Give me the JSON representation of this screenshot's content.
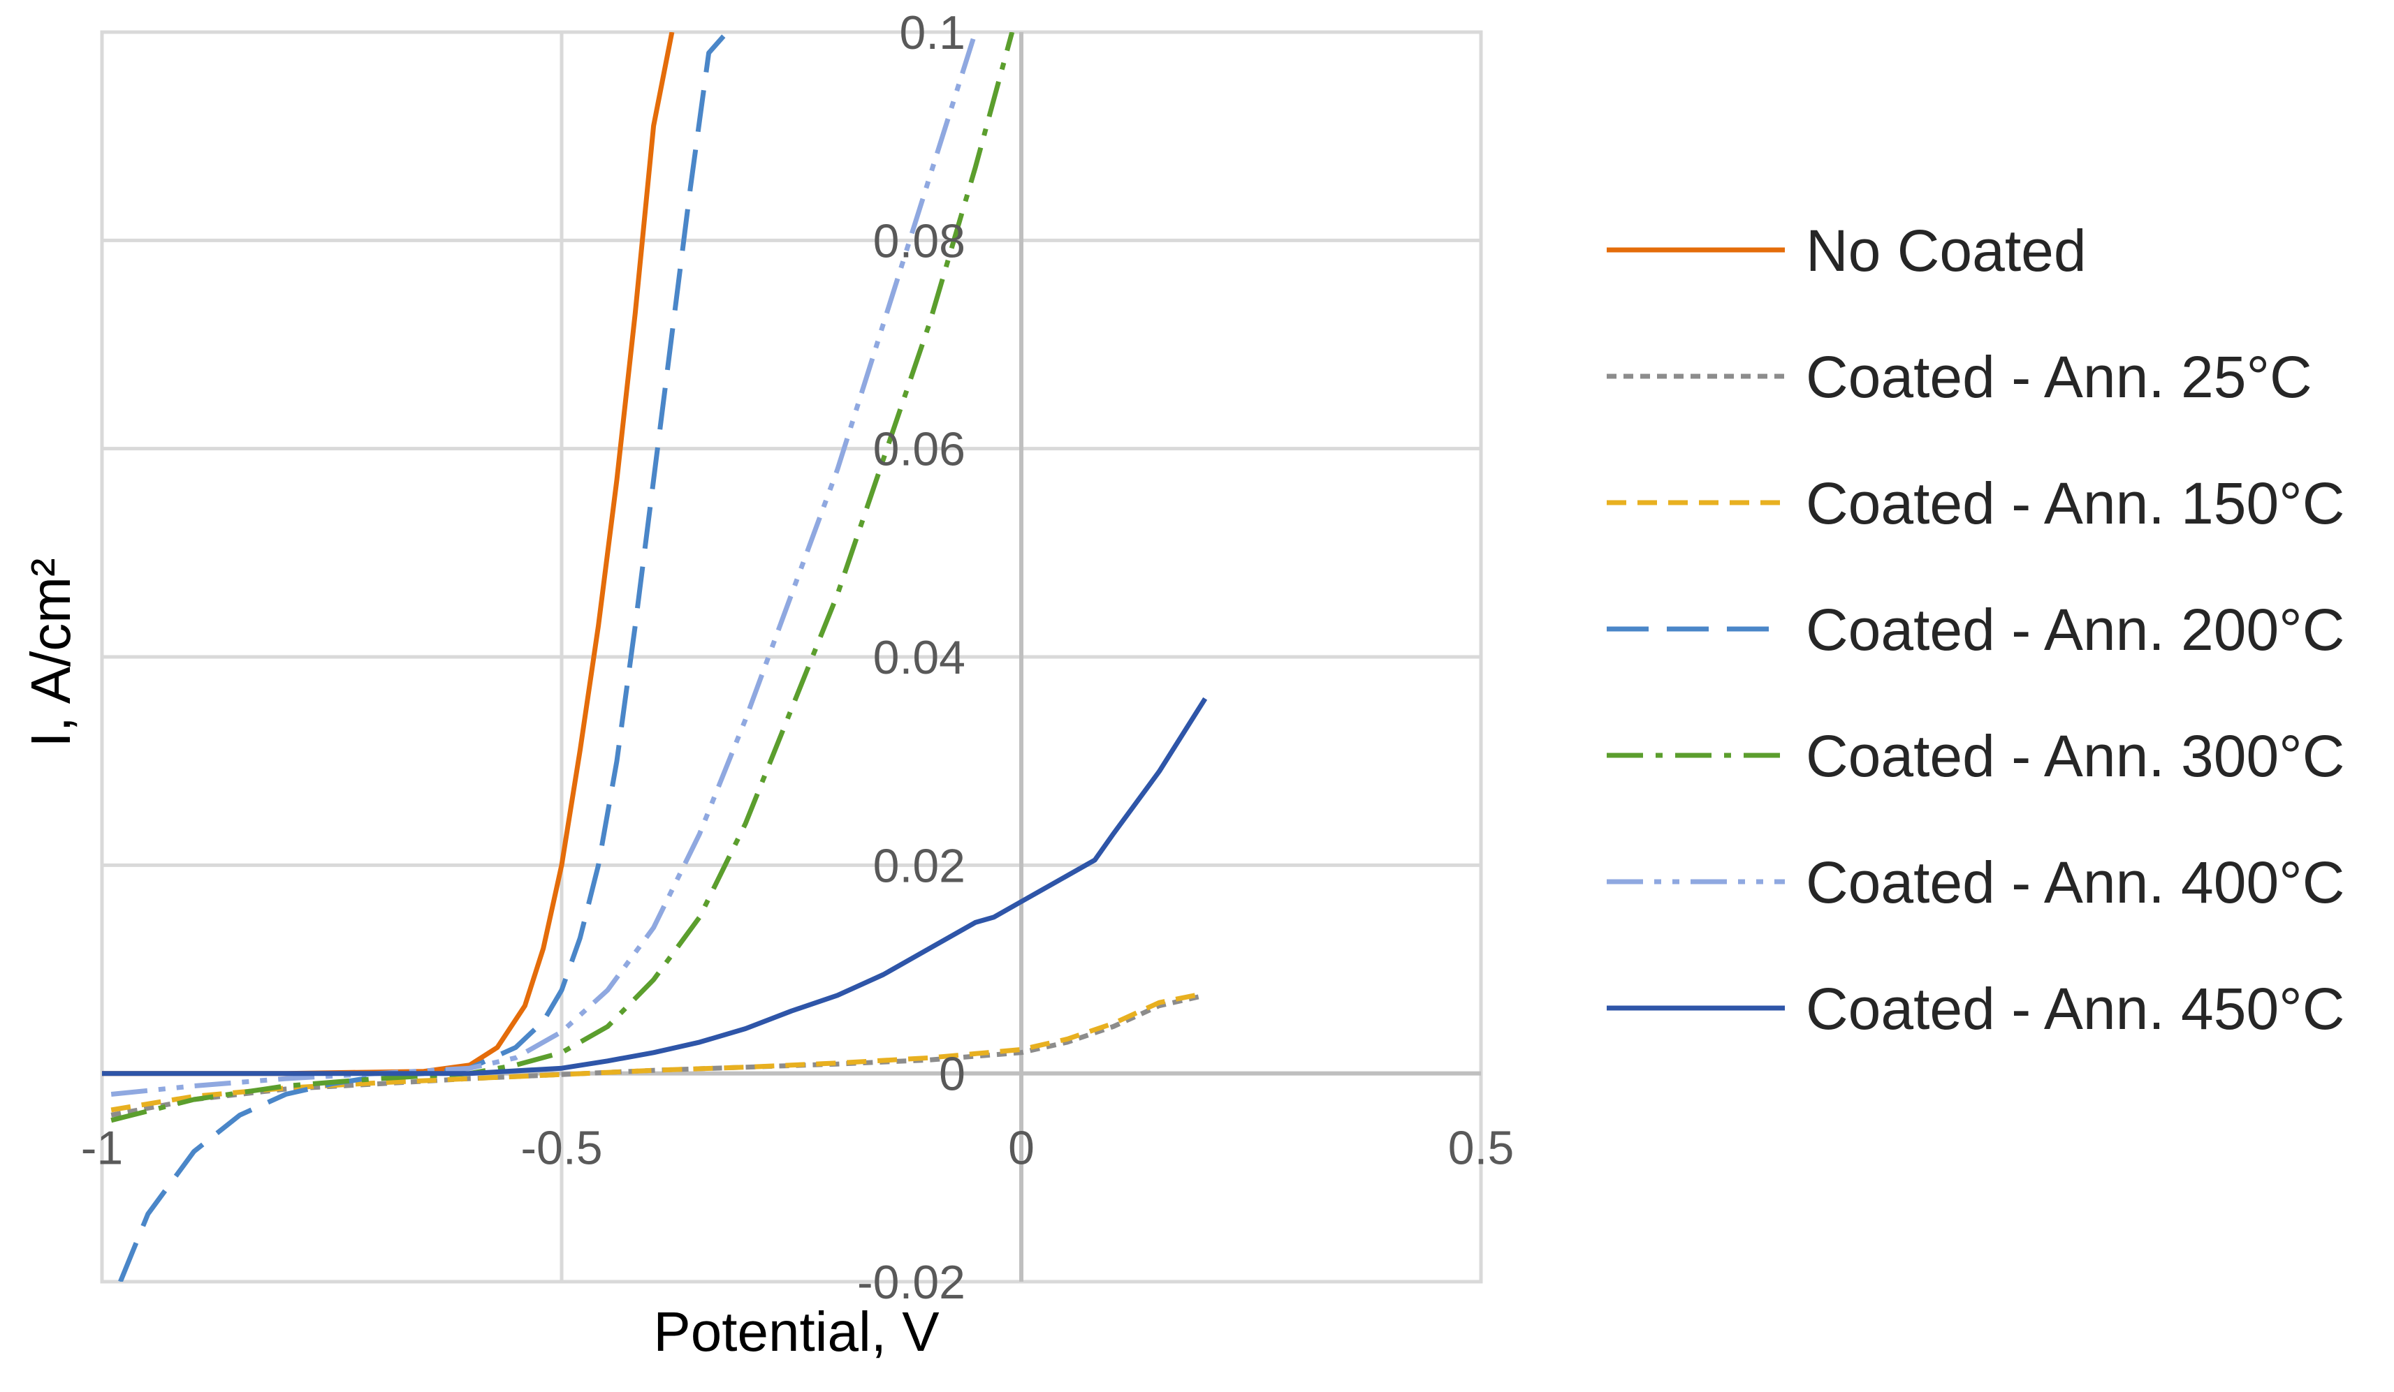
{
  "chart_data": {
    "type": "line",
    "title": "",
    "xlabel": "Potential, V",
    "ylabel": "I, A/cm²",
    "xlim": [
      -1,
      0.5
    ],
    "ylim": [
      -0.02,
      0.1
    ],
    "xticks": [
      -1,
      -0.5,
      0,
      0.5
    ],
    "xtick_labels": [
      "-1",
      "-0.5",
      "0",
      "0.5"
    ],
    "yticks": [
      -0.02,
      0,
      0.02,
      0.04,
      0.06,
      0.08,
      0.1
    ],
    "ytick_labels": [
      "-0.02",
      "0",
      "0.02",
      "0.04",
      "0.06",
      "0.08",
      "0.1"
    ],
    "grid": true,
    "legend_position": "right",
    "series": [
      {
        "name": "No Coated",
        "color": "#E46C0A",
        "dash": "solid",
        "x": [
          -1.0,
          -0.8,
          -0.65,
          -0.6,
          -0.57,
          -0.54,
          -0.52,
          -0.5,
          -0.48,
          -0.46,
          -0.44,
          -0.42,
          -0.4,
          -0.38
        ],
        "y": [
          0.0,
          0.0,
          0.0002,
          0.0008,
          0.0025,
          0.0065,
          0.012,
          0.02,
          0.031,
          0.043,
          0.057,
          0.073,
          0.091,
          0.1
        ]
      },
      {
        "name": "Coated - Ann. 25°C",
        "color": "#8C8C8C",
        "dash": "dashed-short",
        "x": [
          -0.99,
          -0.9,
          -0.8,
          -0.7,
          -0.6,
          -0.5,
          -0.4,
          -0.3,
          -0.2,
          -0.1,
          0.0,
          0.05,
          0.1,
          0.15,
          0.2
        ],
        "y": [
          -0.004,
          -0.0025,
          -0.0015,
          -0.001,
          -0.0005,
          -0.0001,
          0.0003,
          0.0006,
          0.0009,
          0.0013,
          0.002,
          0.003,
          0.0045,
          0.0065,
          0.0075
        ]
      },
      {
        "name": "Coated - Ann. 150°C",
        "color": "#E8B020",
        "dash": "dashed",
        "x": [
          -0.99,
          -0.9,
          -0.8,
          -0.7,
          -0.6,
          -0.5,
          -0.4,
          -0.3,
          -0.2,
          -0.1,
          0.0,
          0.05,
          0.1,
          0.15,
          0.2
        ],
        "y": [
          -0.0035,
          -0.0022,
          -0.0014,
          -0.0009,
          -0.0005,
          -0.0001,
          0.0003,
          0.0006,
          0.001,
          0.0015,
          0.0023,
          0.0033,
          0.0048,
          0.0068,
          0.0077
        ]
      },
      {
        "name": "Coated - Ann. 200°C",
        "color": "#4A86C8",
        "dash": "dashed-long",
        "x": [
          -0.98,
          -0.95,
          -0.9,
          -0.85,
          -0.8,
          -0.75,
          -0.7,
          -0.65,
          -0.6,
          -0.55,
          -0.52,
          -0.5,
          -0.48,
          -0.46,
          -0.44,
          -0.42,
          -0.4,
          -0.38,
          -0.36,
          -0.34,
          -0.32
        ],
        "y": [
          -0.02,
          -0.0135,
          -0.0075,
          -0.004,
          -0.002,
          -0.001,
          -0.0003,
          0.0,
          0.0005,
          0.0025,
          0.005,
          0.008,
          0.013,
          0.02,
          0.03,
          0.043,
          0.057,
          0.071,
          0.085,
          0.098,
          0.1
        ]
      },
      {
        "name": "Coated - Ann. 300°C",
        "color": "#5B9E2D",
        "dash": "dashdot",
        "x": [
          -0.99,
          -0.9,
          -0.8,
          -0.7,
          -0.6,
          -0.55,
          -0.5,
          -0.45,
          -0.4,
          -0.35,
          -0.3,
          -0.25,
          -0.2,
          -0.15,
          -0.1,
          -0.05,
          -0.01
        ],
        "y": [
          -0.0045,
          -0.0025,
          -0.0012,
          -0.0005,
          0.0,
          0.0008,
          0.002,
          0.0045,
          0.009,
          0.015,
          0.024,
          0.035,
          0.046,
          0.059,
          0.072,
          0.087,
          0.1
        ]
      },
      {
        "name": "Coated - Ann. 400°C",
        "color": "#8FA8E0",
        "dash": "dashdotdot",
        "x": [
          -0.99,
          -0.9,
          -0.8,
          -0.7,
          -0.6,
          -0.55,
          -0.5,
          -0.45,
          -0.4,
          -0.35,
          -0.3,
          -0.25,
          -0.2,
          -0.15,
          -0.1,
          -0.05
        ],
        "y": [
          -0.002,
          -0.0012,
          -0.0005,
          0.0,
          0.0005,
          0.0015,
          0.004,
          0.008,
          0.014,
          0.023,
          0.034,
          0.046,
          0.058,
          0.072,
          0.086,
          0.1
        ]
      },
      {
        "name": "Coated - Ann. 450°C",
        "color": "#2E55A8",
        "dash": "solid",
        "x": [
          -1.0,
          -0.9,
          -0.8,
          -0.7,
          -0.6,
          -0.5,
          -0.45,
          -0.4,
          -0.35,
          -0.3,
          -0.25,
          -0.2,
          -0.15,
          -0.1,
          -0.07,
          -0.05,
          -0.03,
          0.0,
          0.05,
          0.08,
          0.1,
          0.15,
          0.2
        ],
        "y": [
          0.0,
          0.0,
          0.0,
          0.0,
          0.0,
          0.0005,
          0.0012,
          0.002,
          0.003,
          0.0043,
          0.006,
          0.0075,
          0.0095,
          0.012,
          0.0135,
          0.0145,
          0.015,
          0.0165,
          0.019,
          0.0205,
          0.023,
          0.029,
          0.036
        ]
      }
    ]
  }
}
